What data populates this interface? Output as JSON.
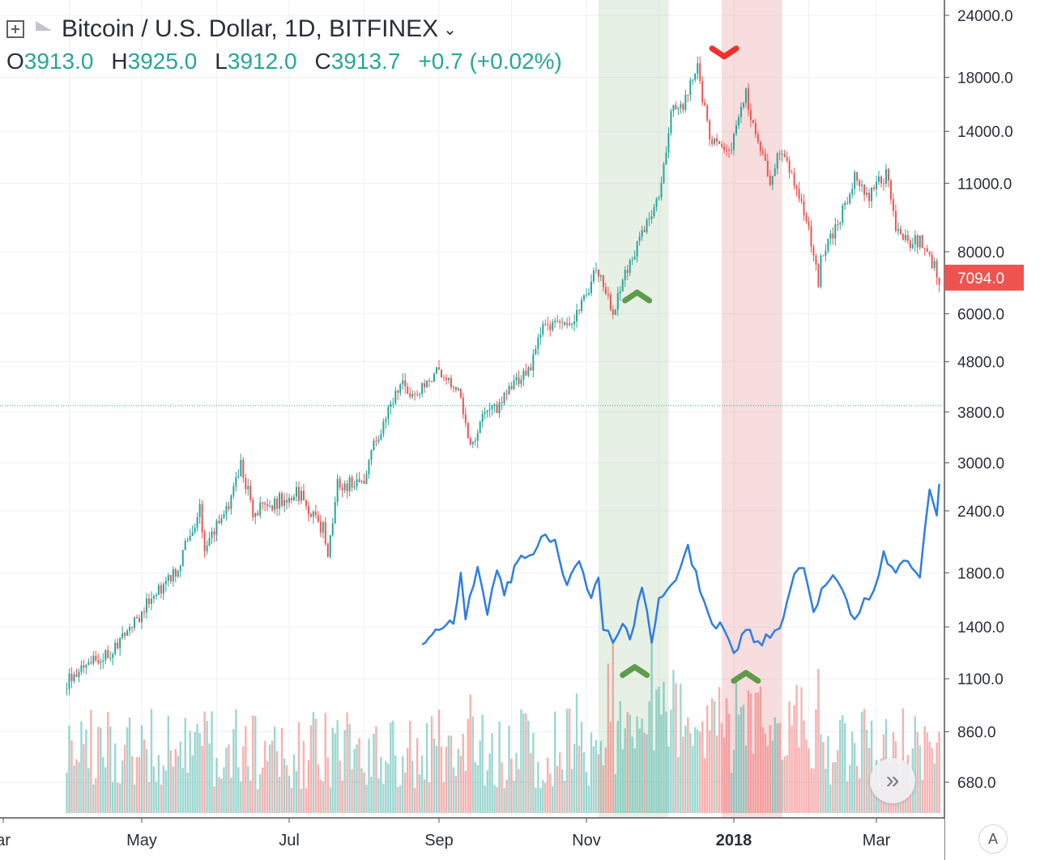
{
  "header": {
    "symbol_title": "Bitcoin / U.S. Dollar, 1D, BITFINEX",
    "dropdown_icon": "chevron-down-icon",
    "ohlc": {
      "open_label": "O",
      "open": "3913.0",
      "high_label": "H",
      "high": "3925.0",
      "low_label": "L",
      "low": "3912.0",
      "close_label": "C",
      "close": "3913.7",
      "change": "+0.7 (+0.02%)"
    }
  },
  "chart_data": {
    "type": "candlestick",
    "scale": "log",
    "y_ticks": [
      24000,
      18000,
      14000,
      11000,
      8000,
      6000,
      4800,
      3800,
      3000,
      2400,
      1800,
      1400,
      1100,
      860,
      680
    ],
    "y_tick_labels": [
      "24000.0",
      "18000.0",
      "14000.0",
      "11000.0",
      "8000.0",
      "6000.0",
      "4800.0",
      "3800.0",
      "3000.0",
      "2400.0",
      "1800.0",
      "1400.0",
      "1100.0",
      "860.0",
      "680.0"
    ],
    "x_tick_labels": [
      {
        "label": "ar",
        "date": "2017-03-31",
        "bold": false
      },
      {
        "label": "May",
        "date": "2017-05-01",
        "bold": false
      },
      {
        "label": "Jul",
        "date": "2017-07-01",
        "bold": false
      },
      {
        "label": "Sep",
        "date": "2017-09-01",
        "bold": false
      },
      {
        "label": "Nov",
        "date": "2017-11-01",
        "bold": false
      },
      {
        "label": "2018",
        "date": "2018-01-01",
        "bold": true
      },
      {
        "label": "Mar",
        "date": "2018-03-01",
        "bold": false
      }
    ],
    "date_range": [
      "2017-03-31",
      "2018-03-27"
    ],
    "last_price": {
      "value": 7094.0,
      "label": "7094.0"
    },
    "reference_line": {
      "value": 3913.7
    },
    "price_keypoints": [
      [
        "2017-03-31",
        1080
      ],
      [
        "2017-04-06",
        1180
      ],
      [
        "2017-04-14",
        1190
      ],
      [
        "2017-04-26",
        1380
      ],
      [
        "2017-05-05",
        1600
      ],
      [
        "2017-05-15",
        1800
      ],
      [
        "2017-05-25",
        2400
      ],
      [
        "2017-05-27",
        2050
      ],
      [
        "2017-06-06",
        2500
      ],
      [
        "2017-06-11",
        2950
      ],
      [
        "2017-06-16",
        2400
      ],
      [
        "2017-06-25",
        2500
      ],
      [
        "2017-07-05",
        2600
      ],
      [
        "2017-07-15",
        2200
      ],
      [
        "2017-07-17",
        1900
      ],
      [
        "2017-07-21",
        2700
      ],
      [
        "2017-08-01",
        2750
      ],
      [
        "2017-08-05",
        3250
      ],
      [
        "2017-08-13",
        4000
      ],
      [
        "2017-08-17",
        4350
      ],
      [
        "2017-08-22",
        4050
      ],
      [
        "2017-09-01",
        4600
      ],
      [
        "2017-09-05",
        4300
      ],
      [
        "2017-09-09",
        4200
      ],
      [
        "2017-09-14",
        3200
      ],
      [
        "2017-09-18",
        3700
      ],
      [
        "2017-09-25",
        3900
      ],
      [
        "2017-10-01",
        4350
      ],
      [
        "2017-10-09",
        4700
      ],
      [
        "2017-10-12",
        5500
      ],
      [
        "2017-10-18",
        5600
      ],
      [
        "2017-10-25",
        5700
      ],
      [
        "2017-11-05",
        7300
      ],
      [
        "2017-11-12",
        6100
      ],
      [
        "2017-11-20",
        7900
      ],
      [
        "2017-11-26",
        9000
      ],
      [
        "2017-12-01",
        10500
      ],
      [
        "2017-12-07",
        16000
      ],
      [
        "2017-12-10",
        15500
      ],
      [
        "2017-12-17",
        19000
      ],
      [
        "2017-12-22",
        13500
      ],
      [
        "2017-12-24",
        13300
      ],
      [
        "2017-12-30",
        12800
      ],
      [
        "2018-01-06",
        16500
      ],
      [
        "2018-01-16",
        11200
      ],
      [
        "2018-01-20",
        12800
      ],
      [
        "2018-01-26",
        11100
      ],
      [
        "2018-02-01",
        9000
      ],
      [
        "2018-02-05",
        6900
      ],
      [
        "2018-02-06",
        7700
      ],
      [
        "2018-02-12",
        8800
      ],
      [
        "2018-02-20",
        11200
      ],
      [
        "2018-02-26",
        10300
      ],
      [
        "2018-03-05",
        11500
      ],
      [
        "2018-03-09",
        9000
      ],
      [
        "2018-03-15",
        8200
      ],
      [
        "2018-03-19",
        8500
      ],
      [
        "2018-03-27",
        7094
      ]
    ],
    "indicator_line": {
      "color": "#2f7ee1",
      "axis_note": "overlay on same price scale",
      "points": [
        [
          "2017-08-25",
          1290
        ],
        [
          "2017-09-01",
          1380
        ],
        [
          "2017-09-07",
          1420
        ],
        [
          "2017-09-10",
          1800
        ],
        [
          "2017-09-12",
          1450
        ],
        [
          "2017-09-17",
          1850
        ],
        [
          "2017-09-21",
          1480
        ],
        [
          "2017-09-25",
          1820
        ],
        [
          "2017-09-28",
          1620
        ],
        [
          "2017-10-05",
          1950
        ],
        [
          "2017-10-10",
          1960
        ],
        [
          "2017-10-15",
          2150
        ],
        [
          "2017-10-19",
          2100
        ],
        [
          "2017-10-24",
          1700
        ],
        [
          "2017-10-29",
          1900
        ],
        [
          "2017-11-03",
          1600
        ],
        [
          "2017-11-06",
          1760
        ],
        [
          "2017-11-08",
          1380
        ],
        [
          "2017-11-12",
          1300
        ],
        [
          "2017-11-16",
          1420
        ],
        [
          "2017-11-19",
          1320
        ],
        [
          "2017-11-24",
          1680
        ],
        [
          "2017-11-28",
          1300
        ],
        [
          "2017-12-01",
          1600
        ],
        [
          "2017-12-06",
          1700
        ],
        [
          "2017-12-10",
          1850
        ],
        [
          "2017-12-13",
          2050
        ],
        [
          "2017-12-18",
          1650
        ],
        [
          "2017-12-23",
          1420
        ],
        [
          "2017-12-28",
          1380
        ],
        [
          "2018-01-01",
          1240
        ],
        [
          "2018-01-06",
          1380
        ],
        [
          "2018-01-11",
          1310
        ],
        [
          "2018-01-16",
          1330
        ],
        [
          "2018-01-20",
          1390
        ],
        [
          "2018-01-26",
          1790
        ],
        [
          "2018-01-30",
          1840
        ],
        [
          "2018-02-03",
          1500
        ],
        [
          "2018-02-08",
          1700
        ],
        [
          "2018-02-11",
          1780
        ],
        [
          "2018-02-15",
          1660
        ],
        [
          "2018-02-20",
          1450
        ],
        [
          "2018-02-24",
          1600
        ],
        [
          "2018-02-28",
          1660
        ],
        [
          "2018-03-04",
          1990
        ],
        [
          "2018-03-09",
          1800
        ],
        [
          "2018-03-14",
          1900
        ],
        [
          "2018-03-19",
          1760
        ],
        [
          "2018-03-23",
          2650
        ],
        [
          "2018-03-26",
          2350
        ],
        [
          "2018-03-27",
          2720
        ]
      ]
    },
    "volume": {
      "relative_max": 1.0,
      "spikes": [
        [
          "2017-04-05",
          0.12
        ],
        [
          "2017-06-10",
          0.1
        ],
        [
          "2017-07-20",
          0.2
        ],
        [
          "2017-09-14",
          0.31
        ],
        [
          "2017-09-15",
          0.2
        ],
        [
          "2017-10-25",
          0.25
        ],
        [
          "2017-11-10",
          0.38
        ],
        [
          "2017-11-12",
          0.42
        ],
        [
          "2017-11-28",
          0.4
        ],
        [
          "2017-12-07",
          0.32
        ],
        [
          "2017-12-08",
          0.28
        ],
        [
          "2017-12-22",
          0.19
        ],
        [
          "2017-12-29",
          0.24
        ],
        [
          "2018-01-16",
          0.2
        ],
        [
          "2018-01-17",
          0.18
        ],
        [
          "2018-02-05",
          0.31
        ],
        [
          "2018-02-06",
          0.19
        ],
        [
          "2018-02-15",
          0.26
        ],
        [
          "2018-03-09",
          0.18
        ],
        [
          "2018-03-18",
          0.17
        ]
      ]
    },
    "highlight_bands": [
      {
        "start": "2017-11-06",
        "end": "2017-12-05",
        "color": "rgba(170,200,160,0.28)"
      },
      {
        "start": "2017-12-27",
        "end": "2018-01-21",
        "color": "rgba(230,150,150,0.32)"
      }
    ],
    "markers": [
      {
        "date": "2017-12-28",
        "price": 20200,
        "shape": "chevron-down",
        "color": "#f0302a"
      },
      {
        "date": "2017-11-22",
        "price": 6500,
        "shape": "chevron-up",
        "color": "#5e9b4c"
      },
      {
        "date": "2017-11-21",
        "price": 1140,
        "shape": "chevron-up",
        "color": "#5e9b4c"
      },
      {
        "date": "2018-01-06",
        "price": 1110,
        "shape": "chevron-up",
        "color": "#5e9b4c"
      }
    ],
    "colors": {
      "up": "#26a69a",
      "down": "#ef5350",
      "volume_up": "rgba(38,166,154,0.45)",
      "volume_down": "rgba(239,83,80,0.45)",
      "grid": "#eef0f4",
      "axis_text": "#2a2e39"
    }
  },
  "controls": {
    "scroll_button_icon": "double-chevron-right-icon",
    "scroll_button_glyph": "»",
    "auto_scale_label": "A"
  }
}
